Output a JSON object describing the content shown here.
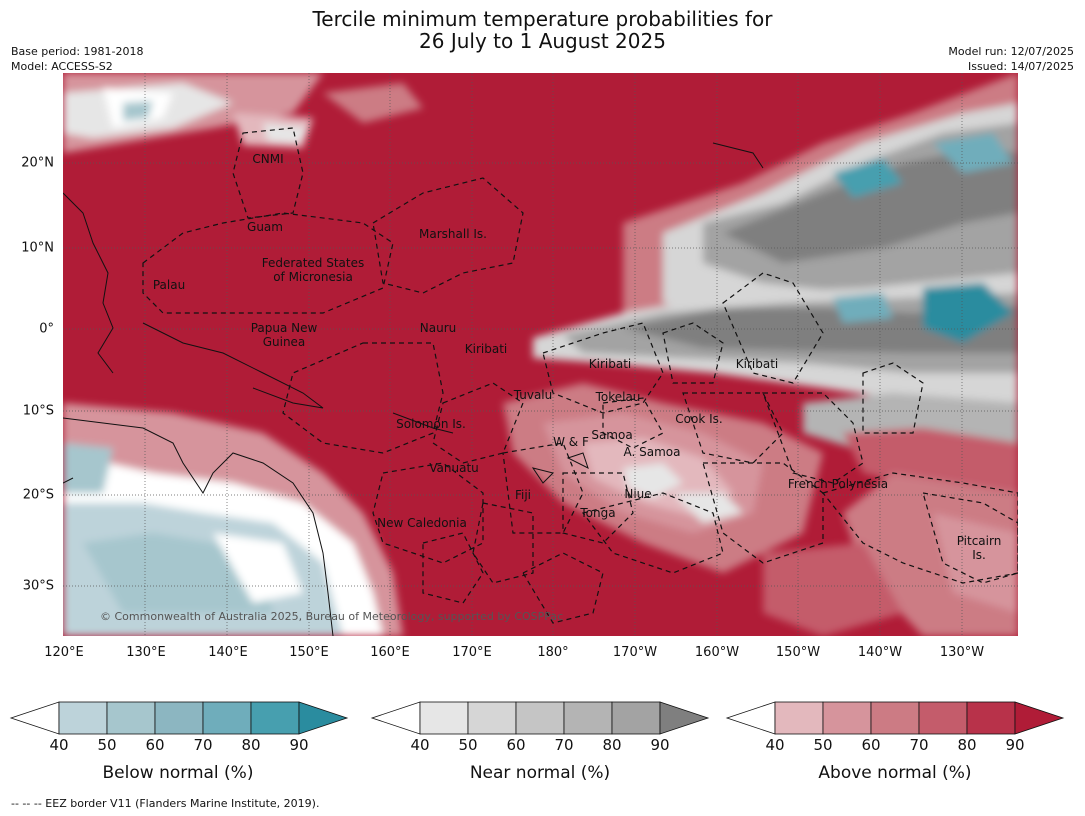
{
  "title": {
    "line1": "Tercile minimum temperature probabilities for",
    "line2": "26 July to 1 August 2025"
  },
  "meta": {
    "base_period": "Base period: 1981-2018",
    "model": "Model: ACCESS-S2",
    "model_run": "Model run: 12/07/2025",
    "issued": "Issued: 14/07/2025"
  },
  "axes": {
    "lon_ticks": [
      "120°E",
      "130°E",
      "140°E",
      "150°E",
      "160°E",
      "170°E",
      "180°",
      "170°W",
      "160°W",
      "150°W",
      "140°W",
      "130°W"
    ],
    "lat_ticks": [
      "20°N",
      "10°N",
      "0°",
      "10°S",
      "20°S",
      "30°S"
    ]
  },
  "regions": [
    "CNMI",
    "Guam",
    "Marshall Is.",
    "Federated States\nof Micronesia",
    "Palau",
    "Papua New\nGuinea",
    "Nauru",
    "Kiribati",
    "Kiribati",
    "Kiribati",
    "Tuvalu",
    "Tokelau",
    "Solomon Is.",
    "Samoa",
    "W & F",
    "A. Samoa",
    "Cook Is.",
    "Vanuatu",
    "Fiji",
    "Niue",
    "Tonga",
    "French Polynesia",
    "New Caledonia",
    "Pitcairn\nIs."
  ],
  "copyright": "© Commonwealth of Australia 2025, Bureau of Meteorology, supported by COSPPac",
  "colorbars": [
    {
      "label": "Below normal (%)",
      "ticks": [
        "40",
        "50",
        "60",
        "70",
        "80",
        "90"
      ],
      "colors": [
        "#ffffff",
        "#bdd3da",
        "#a6c6cd",
        "#8cb6c1",
        "#6fadbb",
        "#479faf",
        "#2a8c9f"
      ]
    },
    {
      "label": "Near normal (%)",
      "ticks": [
        "40",
        "50",
        "60",
        "70",
        "80",
        "90"
      ],
      "colors": [
        "#ffffff",
        "#e6e6e6",
        "#d6d6d6",
        "#c5c5c5",
        "#b4b4b4",
        "#a3a3a3",
        "#7f7f7f"
      ]
    },
    {
      "label": "Above normal (%)",
      "ticks": [
        "40",
        "50",
        "60",
        "70",
        "80",
        "90"
      ],
      "colors": [
        "#ffffff",
        "#e3b8bd",
        "#d6949c",
        "#cc7b84",
        "#c45c6b",
        "#b8324a",
        "#b01c37"
      ]
    }
  ],
  "footnote": "--  --  -- EEZ border V11 (Flanders Marine Institute, 2019)."
}
